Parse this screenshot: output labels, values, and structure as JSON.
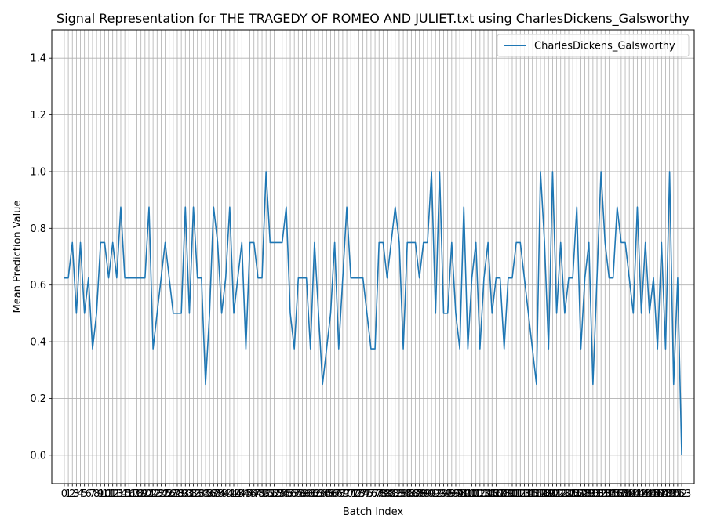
{
  "chart_data": {
    "type": "line",
    "title": "Signal Representation for THE TRAGEDY OF ROMEO AND JULIET.txt using CharlesDickens_Galsworthy",
    "xlabel": "Batch Index",
    "ylabel": "Mean Prediction Value",
    "xlim": [
      -3.1,
      156.1
    ],
    "ylim": [
      -0.1,
      1.5
    ],
    "yticks": [
      0.0,
      0.2,
      0.4,
      0.6,
      0.8,
      1.0,
      1.2,
      1.4
    ],
    "grid": true,
    "legend_position": "upper-right",
    "series": [
      {
        "name": "CharlesDickens_Galsworthy",
        "color": "#1f77b4",
        "x": [
          0,
          1,
          2,
          3,
          4,
          5,
          6,
          7,
          8,
          9,
          10,
          11,
          12,
          13,
          14,
          15,
          16,
          17,
          18,
          19,
          20,
          21,
          22,
          23,
          24,
          25,
          26,
          27,
          28,
          29,
          30,
          31,
          32,
          33,
          34,
          35,
          36,
          37,
          38,
          39,
          40,
          41,
          42,
          43,
          44,
          45,
          46,
          47,
          48,
          49,
          50,
          51,
          52,
          53,
          54,
          55,
          56,
          57,
          58,
          59,
          60,
          61,
          62,
          63,
          64,
          65,
          66,
          67,
          68,
          69,
          70,
          71,
          72,
          73,
          74,
          75,
          76,
          77,
          78,
          79,
          80,
          81,
          82,
          83,
          84,
          85,
          86,
          87,
          88,
          89,
          90,
          91,
          92,
          93,
          94,
          95,
          96,
          97,
          98,
          99,
          100,
          101,
          102,
          103,
          104,
          105,
          106,
          107,
          108,
          109,
          110,
          111,
          112,
          113,
          114,
          115,
          116,
          117,
          118,
          119,
          120,
          121,
          122,
          123,
          124,
          125,
          126,
          127,
          128,
          129,
          130,
          131,
          132,
          133,
          134,
          135,
          136,
          137,
          138,
          139,
          140,
          141,
          142,
          143,
          144,
          145,
          146,
          147,
          148,
          149,
          150,
          151,
          152,
          153
        ],
        "values": [
          0.625,
          0.625,
          0.75,
          0.5,
          0.75,
          0.5,
          0.625,
          0.375,
          0.5,
          0.75,
          0.75,
          0.625,
          0.75,
          0.625,
          0.875,
          0.625,
          0.625,
          0.625,
          0.625,
          0.625,
          0.625,
          0.875,
          0.375,
          0.5,
          0.625,
          0.75,
          0.625,
          0.5,
          0.5,
          0.5,
          0.875,
          0.5,
          0.875,
          0.625,
          0.625,
          0.25,
          0.5,
          0.875,
          0.75,
          0.5,
          0.625,
          0.875,
          0.5,
          0.625,
          0.75,
          0.375,
          0.75,
          0.75,
          0.625,
          0.625,
          1.0,
          0.75,
          0.75,
          0.75,
          0.75,
          0.875,
          0.5,
          0.375,
          0.625,
          0.625,
          0.625,
          0.375,
          0.75,
          0.5,
          0.25,
          0.375,
          0.5,
          0.75,
          0.375,
          0.625,
          0.875,
          0.625,
          0.625,
          0.625,
          0.625,
          0.5,
          0.375,
          0.375,
          0.75,
          0.75,
          0.625,
          0.75,
          0.875,
          0.75,
          0.375,
          0.75,
          0.75,
          0.75,
          0.625,
          0.75,
          0.75,
          1.0,
          0.5,
          1.0,
          0.5,
          0.5,
          0.75,
          0.5,
          0.375,
          0.875,
          0.375,
          0.625,
          0.75,
          0.375,
          0.625,
          0.75,
          0.5,
          0.625,
          0.625,
          0.375,
          0.625,
          0.625,
          0.75,
          0.75,
          0.625,
          0.5,
          0.375,
          0.25,
          1.0,
          0.75,
          0.375,
          1.0,
          0.5,
          0.75,
          0.5,
          0.625,
          0.625,
          0.875,
          0.375,
          0.625,
          0.75,
          0.25,
          0.625,
          1.0,
          0.75,
          0.625,
          0.625,
          0.875,
          0.75,
          0.75,
          0.625,
          0.5,
          0.875,
          0.5,
          0.75,
          0.5,
          0.625,
          0.375,
          0.75,
          0.375,
          1.0,
          0.25,
          0.625,
          0.0
        ]
      }
    ]
  }
}
